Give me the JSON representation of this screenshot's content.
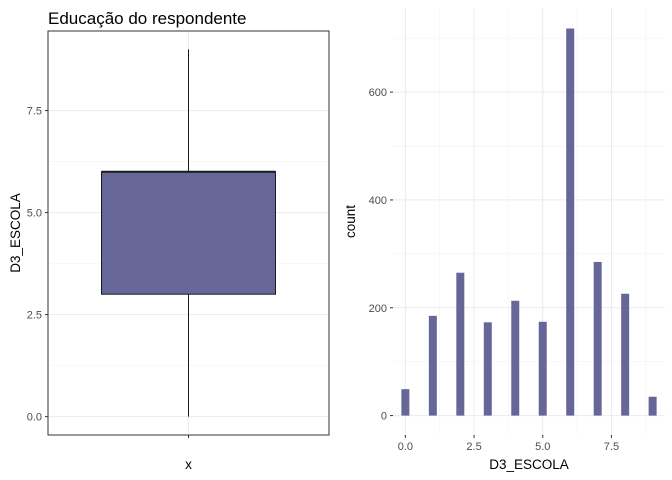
{
  "chart_data": [
    {
      "type": "boxplot",
      "title": "Educação do respondente",
      "xlabel": "x",
      "ylabel": "D3_ESCOLA",
      "x_tick_labels": [
        ""
      ],
      "ylim": [
        -0.45,
        9.45
      ],
      "y_ticks": [
        0,
        2.5,
        5,
        7.5
      ],
      "y_tick_labels": [
        "0.0",
        "2.5",
        "5.0",
        "7.5"
      ],
      "grid": true,
      "fill_color": "#676698",
      "stats": {
        "min": 0,
        "q1": 3,
        "median": 6,
        "q3": 6,
        "max": 9
      }
    },
    {
      "type": "bar",
      "title": "",
      "xlabel": "D3_ESCOLA",
      "ylabel": "count",
      "xlim": [
        -0.45,
        9.45
      ],
      "ylim": [
        -36,
        756
      ],
      "x_ticks": [
        0,
        2.5,
        5,
        7.5
      ],
      "x_tick_labels": [
        "0.0",
        "2.5",
        "5.0",
        "7.5"
      ],
      "y_ticks": [
        0,
        200,
        400,
        600
      ],
      "y_tick_labels": [
        "0",
        "200",
        "400",
        "600"
      ],
      "grid": true,
      "fill_color": "#676698",
      "x": [
        0,
        1,
        2,
        3,
        4,
        5,
        6,
        7,
        8,
        9
      ],
      "values": [
        49,
        185,
        265,
        173,
        213,
        174,
        718,
        285,
        226,
        35
      ]
    }
  ]
}
